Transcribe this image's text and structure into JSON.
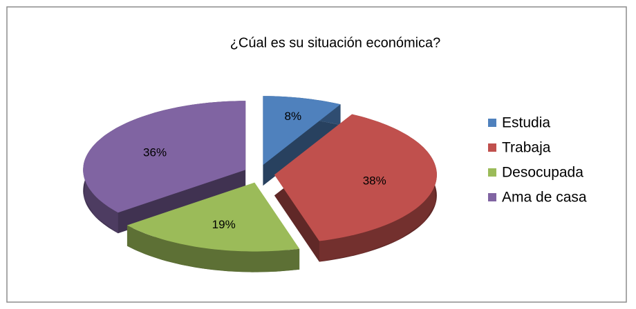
{
  "chart_data": {
    "type": "pie",
    "title": "¿Cúal es su situación económica?",
    "categories": [
      "Estudia",
      "Trabaja",
      "Desocupada",
      "Ama de casa"
    ],
    "values": [
      8,
      38,
      19,
      36
    ],
    "value_labels": [
      "8%",
      "38%",
      "19%",
      "36%"
    ],
    "colors": [
      "#4f81bd",
      "#c0504d",
      "#9bbb59",
      "#8064a2"
    ],
    "legend": "right"
  }
}
